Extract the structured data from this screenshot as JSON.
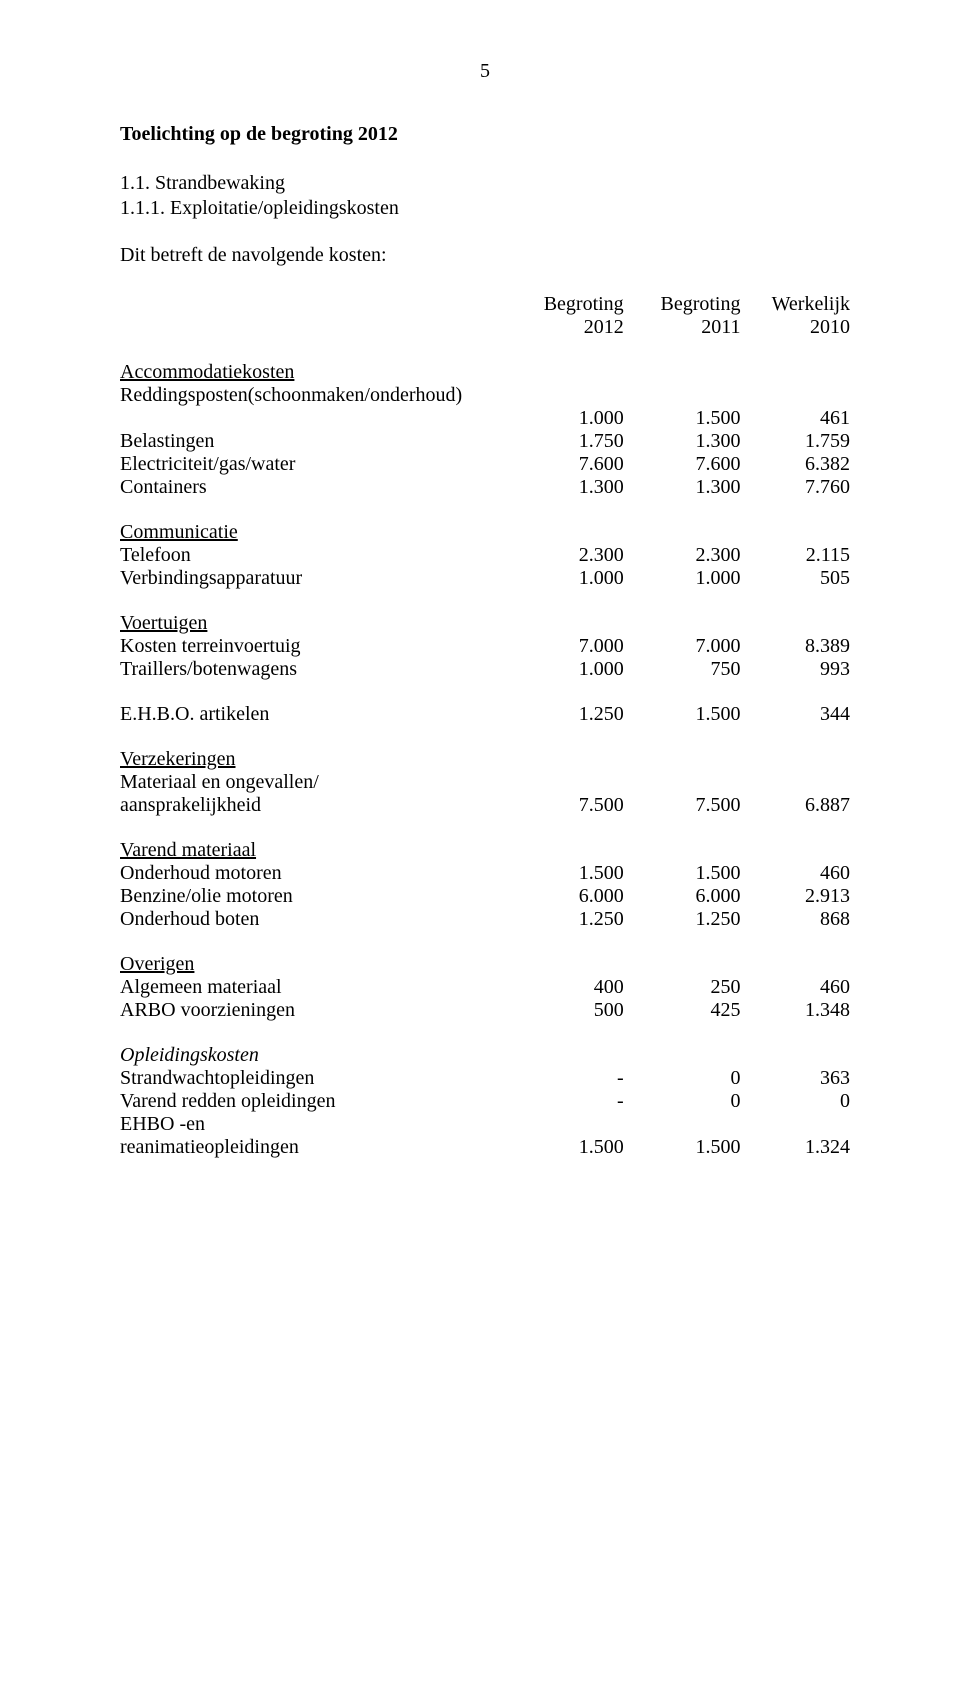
{
  "page_number": "5",
  "title": "Toelichting op de begroting 2012",
  "heading_number": "1.1.    Strandbewaking",
  "subheading": "1.1.1.  Exploitatie/opleidingskosten",
  "intro": "Dit betreft de navolgende kosten:",
  "header": {
    "c1_top": "Begroting",
    "c1_bot": "2012",
    "c2_top": "Begroting",
    "c2_bot": "2011",
    "c3_top": "Werkelijk",
    "c3_bot": "2010"
  },
  "sections": [
    {
      "heading": "Accommodatiekosten",
      "rows": [
        {
          "label": "Reddingsposten(schoonmaken/onderhoud)",
          "wrap": true,
          "v1": "1.000",
          "v2": "1.500",
          "v3": "461"
        },
        {
          "label": "Belastingen",
          "v1": "1.750",
          "v2": "1.300",
          "v3": "1.759"
        },
        {
          "label": "Electriciteit/gas/water",
          "v1": "7.600",
          "v2": "7.600",
          "v3": "6.382"
        },
        {
          "label": "Containers",
          "v1": "1.300",
          "v2": "1.300",
          "v3": "7.760"
        }
      ]
    },
    {
      "heading": "Communicatie",
      "rows": [
        {
          "label": "Telefoon",
          "v1": "2.300",
          "v2": "2.300",
          "v3": "2.115"
        },
        {
          "label": "Verbindingsapparatuur",
          "v1": "1.000",
          "v2": "1.000",
          "v3": "505"
        }
      ]
    },
    {
      "heading": "Voertuigen",
      "rows": [
        {
          "label": "Kosten terreinvoertuig",
          "v1": "7.000",
          "v2": "7.000",
          "v3": "8.389"
        },
        {
          "label": "Traillers/botenwagens",
          "v1": "1.000",
          "v2": "750",
          "v3": "993"
        }
      ]
    },
    {
      "rows": [
        {
          "label": "E.H.B.O. artikelen",
          "v1": "1.250",
          "v2": "1.500",
          "v3": "344"
        }
      ]
    },
    {
      "heading": "Verzekeringen",
      "rows": [
        {
          "label": "Materiaal en ongevallen/",
          "text_only": true
        },
        {
          "label": "aansprakelijkheid",
          "v1": "7.500",
          "v2": "7.500",
          "v3": "6.887"
        }
      ]
    },
    {
      "heading": "Varend materiaal",
      "rows": [
        {
          "label": "Onderhoud motoren",
          "v1": "1.500",
          "v2": "1.500",
          "v3": "460"
        },
        {
          "label": "Benzine/olie motoren",
          "v1": "6.000",
          "v2": "6.000",
          "v3": "2.913"
        },
        {
          "label": "Onderhoud boten",
          "v1": "1.250",
          "v2": "1.250",
          "v3": "868"
        }
      ]
    },
    {
      "heading": "Overigen",
      "rows": [
        {
          "label": "Algemeen materiaal",
          "v1": "400",
          "v2": "250",
          "v3": "460"
        },
        {
          "label": "ARBO voorzieningen",
          "v1": "500",
          "v2": "425",
          "v3": "1.348"
        }
      ]
    },
    {
      "heading": "Opleidingskosten",
      "heading_style": "italic",
      "rows": [
        {
          "label": "Strandwachtopleidingen",
          "v1": "-",
          "v2": "0",
          "v3": "363"
        },
        {
          "label": "Varend redden opleidingen",
          "v1": "-",
          "v2": "0",
          "v3": "0"
        },
        {
          "label": "EHBO -en",
          "text_only": true
        },
        {
          "label": "reanimatieopleidingen",
          "v1": "1.500",
          "v2": "1.500",
          "v3": "1.324"
        }
      ]
    }
  ]
}
